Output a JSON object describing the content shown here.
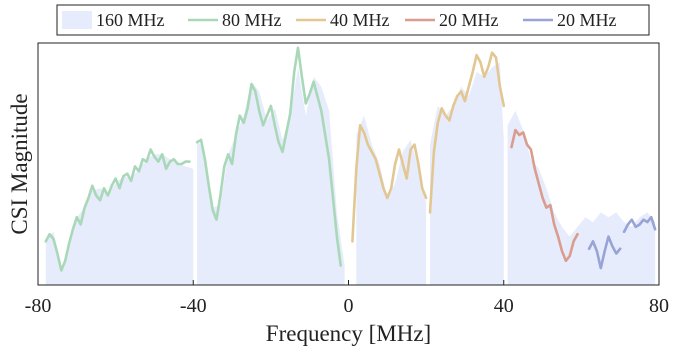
{
  "chart_data": {
    "type": "line",
    "title": "",
    "xlabel": "Frequency [MHz]",
    "ylabel": "CSI Magnitude",
    "xlim": [
      -80,
      80
    ],
    "ylim": [
      0,
      1
    ],
    "xticks": [
      -80,
      -40,
      0,
      40,
      80
    ],
    "xtick_labels": [
      "-80",
      "-40",
      "0",
      "40",
      "80"
    ],
    "grid": false,
    "legend_position": "top",
    "series": [
      {
        "name": "160 MHz",
        "kind": "area",
        "color": "#e6ecfb",
        "segments": [
          [
            [
              -78,
              0.19
            ],
            [
              -76,
              0.22
            ],
            [
              -74,
              0.06
            ],
            [
              -72,
              0.18
            ],
            [
              -70,
              0.28
            ],
            [
              -68,
              0.32
            ],
            [
              -66,
              0.39
            ],
            [
              -64,
              0.4
            ],
            [
              -62,
              0.38
            ],
            [
              -60,
              0.42
            ],
            [
              -58,
              0.45
            ],
            [
              -56,
              0.44
            ],
            [
              -54,
              0.48
            ],
            [
              -52,
              0.52
            ],
            [
              -50,
              0.54
            ],
            [
              -48,
              0.54
            ],
            [
              -46,
              0.52
            ],
            [
              -44,
              0.5
            ],
            [
              -42,
              0.49
            ],
            [
              -40,
              0.48
            ]
          ],
          [
            [
              -39,
              0.6
            ],
            [
              -37,
              0.55
            ],
            [
              -35,
              0.32
            ],
            [
              -33,
              0.33
            ],
            [
              -31,
              0.54
            ],
            [
              -29,
              0.62
            ],
            [
              -27,
              0.7
            ],
            [
              -25,
              0.84
            ],
            [
              -23,
              0.8
            ],
            [
              -21,
              0.68
            ],
            [
              -19,
              0.73
            ],
            [
              -17,
              0.6
            ],
            [
              -15,
              0.7
            ],
            [
              -13,
              0.9
            ],
            [
              -11,
              0.7
            ],
            [
              -9,
              0.86
            ],
            [
              -7,
              0.82
            ],
            [
              -5,
              0.72
            ],
            [
              -3,
              0.3
            ],
            [
              -1,
              0.08
            ]
          ],
          [
            [
              2,
              0.62
            ],
            [
              4,
              0.7
            ],
            [
              6,
              0.58
            ],
            [
              8,
              0.5
            ],
            [
              10,
              0.36
            ],
            [
              12,
              0.42
            ],
            [
              14,
              0.55
            ],
            [
              16,
              0.6
            ],
            [
              18,
              0.48
            ],
            [
              20,
              0.34
            ]
          ],
          [
            [
              21,
              0.58
            ],
            [
              23,
              0.74
            ],
            [
              25,
              0.7
            ],
            [
              27,
              0.74
            ],
            [
              29,
              0.82
            ],
            [
              31,
              0.78
            ],
            [
              33,
              0.88
            ],
            [
              35,
              0.86
            ],
            [
              37,
              0.9
            ],
            [
              39,
              0.92
            ],
            [
              40,
              0.6
            ]
          ],
          [
            [
              41,
              0.66
            ],
            [
              43,
              0.72
            ],
            [
              45,
              0.64
            ],
            [
              47,
              0.52
            ],
            [
              49,
              0.48
            ],
            [
              51,
              0.4
            ],
            [
              53,
              0.3
            ],
            [
              55,
              0.24
            ],
            [
              57,
              0.2
            ],
            [
              59,
              0.24
            ],
            [
              61,
              0.28
            ],
            [
              63,
              0.26
            ],
            [
              65,
              0.3
            ],
            [
              67,
              0.28
            ],
            [
              69,
              0.3
            ],
            [
              71,
              0.26
            ],
            [
              73,
              0.24
            ],
            [
              75,
              0.28
            ],
            [
              77,
              0.3
            ],
            [
              79,
              0.26
            ]
          ]
        ]
      },
      {
        "name": "80 MHz",
        "kind": "line",
        "color": "#a9d8b8",
        "segments": [
          [
            [
              -78,
              0.18
            ],
            [
              -77,
              0.21
            ],
            [
              -76,
              0.19
            ],
            [
              -75,
              0.13
            ],
            [
              -74,
              0.06
            ],
            [
              -73,
              0.1
            ],
            [
              -72,
              0.17
            ],
            [
              -71,
              0.23
            ],
            [
              -70,
              0.28
            ],
            [
              -69,
              0.25
            ],
            [
              -68,
              0.32
            ],
            [
              -67,
              0.36
            ],
            [
              -66,
              0.41
            ],
            [
              -65,
              0.37
            ],
            [
              -64,
              0.35
            ],
            [
              -63,
              0.4
            ],
            [
              -62,
              0.37
            ],
            [
              -61,
              0.41
            ],
            [
              -60,
              0.44
            ],
            [
              -59,
              0.4
            ],
            [
              -58,
              0.45
            ],
            [
              -57,
              0.46
            ],
            [
              -56,
              0.43
            ],
            [
              -55,
              0.49
            ],
            [
              -54,
              0.47
            ],
            [
              -53,
              0.52
            ],
            [
              -52,
              0.51
            ],
            [
              -51,
              0.56
            ],
            [
              -50,
              0.53
            ],
            [
              -49,
              0.51
            ],
            [
              -48,
              0.54
            ],
            [
              -47,
              0.48
            ],
            [
              -46,
              0.51
            ],
            [
              -45,
              0.52
            ],
            [
              -44,
              0.5
            ],
            [
              -43,
              0.5
            ],
            [
              -42,
              0.51
            ],
            [
              -41,
              0.51
            ]
          ],
          [
            [
              -39,
              0.59
            ],
            [
              -38,
              0.6
            ],
            [
              -37,
              0.52
            ],
            [
              -36,
              0.41
            ],
            [
              -35,
              0.31
            ],
            [
              -34,
              0.27
            ],
            [
              -33,
              0.37
            ],
            [
              -32,
              0.49
            ],
            [
              -31,
              0.54
            ],
            [
              -30,
              0.5
            ],
            [
              -29,
              0.62
            ],
            [
              -28,
              0.7
            ],
            [
              -27,
              0.67
            ],
            [
              -26,
              0.73
            ],
            [
              -25,
              0.83
            ],
            [
              -24,
              0.8
            ],
            [
              -23,
              0.72
            ],
            [
              -22,
              0.66
            ],
            [
              -21,
              0.7
            ],
            [
              -20,
              0.74
            ],
            [
              -19,
              0.66
            ],
            [
              -18,
              0.59
            ],
            [
              -17,
              0.55
            ],
            [
              -16,
              0.63
            ],
            [
              -15,
              0.71
            ],
            [
              -14,
              0.88
            ],
            [
              -13,
              0.98
            ],
            [
              -12,
              0.86
            ],
            [
              -11,
              0.75
            ],
            [
              -10,
              0.79
            ],
            [
              -9,
              0.84
            ],
            [
              -8,
              0.78
            ],
            [
              -7,
              0.72
            ],
            [
              -6,
              0.62
            ],
            [
              -5,
              0.52
            ],
            [
              -4,
              0.36
            ],
            [
              -3,
              0.2
            ],
            [
              -2,
              0.08
            ]
          ]
        ]
      },
      {
        "name": "40 MHz",
        "kind": "line",
        "color": "#e2c793",
        "segments": [
          [
            [
              1,
              0.18
            ],
            [
              2,
              0.48
            ],
            [
              3,
              0.66
            ],
            [
              4,
              0.63
            ],
            [
              5,
              0.58
            ],
            [
              6,
              0.55
            ],
            [
              7,
              0.52
            ],
            [
              8,
              0.46
            ],
            [
              9,
              0.4
            ],
            [
              10,
              0.36
            ],
            [
              11,
              0.4
            ],
            [
              12,
              0.5
            ],
            [
              13,
              0.56
            ],
            [
              14,
              0.5
            ],
            [
              15,
              0.44
            ],
            [
              16,
              0.56
            ],
            [
              17,
              0.58
            ],
            [
              18,
              0.5
            ],
            [
              19,
              0.4
            ],
            [
              20,
              0.36
            ]
          ],
          [
            [
              21,
              0.3
            ],
            [
              22,
              0.55
            ],
            [
              23,
              0.67
            ],
            [
              24,
              0.73
            ],
            [
              25,
              0.7
            ],
            [
              26,
              0.68
            ],
            [
              27,
              0.74
            ],
            [
              28,
              0.78
            ],
            [
              29,
              0.8
            ],
            [
              30,
              0.76
            ],
            [
              31,
              0.82
            ],
            [
              32,
              0.88
            ],
            [
              33,
              0.95
            ],
            [
              34,
              0.92
            ],
            [
              35,
              0.86
            ],
            [
              36,
              0.9
            ],
            [
              37,
              0.96
            ],
            [
              38,
              0.94
            ],
            [
              39,
              0.82
            ],
            [
              40,
              0.74
            ]
          ]
        ]
      },
      {
        "name": "20 MHz",
        "kind": "line",
        "color": "#d99c8e",
        "segments": [
          [
            [
              42,
              0.57
            ],
            [
              43,
              0.64
            ],
            [
              44,
              0.62
            ],
            [
              45,
              0.63
            ],
            [
              46,
              0.58
            ],
            [
              47,
              0.56
            ],
            [
              48,
              0.48
            ],
            [
              49,
              0.42
            ],
            [
              50,
              0.36
            ],
            [
              51,
              0.32
            ],
            [
              52,
              0.33
            ],
            [
              53,
              0.25
            ],
            [
              54,
              0.2
            ],
            [
              55,
              0.14
            ],
            [
              56,
              0.1
            ],
            [
              57,
              0.12
            ],
            [
              58,
              0.18
            ],
            [
              59,
              0.21
            ]
          ]
        ]
      },
      {
        "name": "20 MHz",
        "kind": "line",
        "color": "#97a4d5",
        "segments": [
          [
            [
              62,
              0.15
            ],
            [
              63,
              0.18
            ],
            [
              64,
              0.14
            ],
            [
              65,
              0.07
            ],
            [
              66,
              0.14
            ],
            [
              67,
              0.2
            ],
            [
              68,
              0.16
            ],
            [
              69,
              0.13
            ],
            [
              70,
              0.15
            ]
          ],
          [
            [
              71,
              0.22
            ],
            [
              72,
              0.25
            ],
            [
              73,
              0.27
            ],
            [
              74,
              0.24
            ],
            [
              75,
              0.25
            ],
            [
              76,
              0.27
            ],
            [
              77,
              0.26
            ],
            [
              78,
              0.28
            ],
            [
              79,
              0.23
            ]
          ]
        ]
      }
    ]
  }
}
